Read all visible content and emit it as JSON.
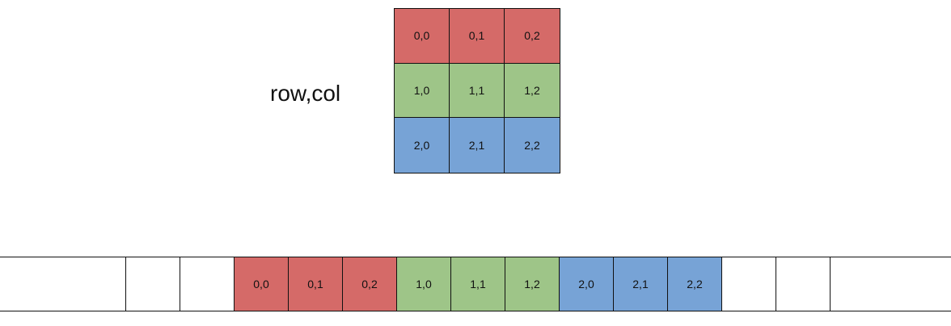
{
  "label": "row,col",
  "colors": {
    "row0": "#d56a68",
    "row1": "#9ec588",
    "row2": "#77a3d6",
    "empty": "#ffffff"
  },
  "matrix": [
    [
      {
        "text": "0,0",
        "row": 0
      },
      {
        "text": "0,1",
        "row": 0
      },
      {
        "text": "0,2",
        "row": 0
      }
    ],
    [
      {
        "text": "1,0",
        "row": 1
      },
      {
        "text": "1,1",
        "row": 1
      },
      {
        "text": "1,2",
        "row": 1
      }
    ],
    [
      {
        "text": "2,0",
        "row": 2
      },
      {
        "text": "2,1",
        "row": 2
      },
      {
        "text": "2,2",
        "row": 2
      }
    ]
  ],
  "strip": [
    {
      "text": "",
      "row": null
    },
    {
      "text": "",
      "row": null
    },
    {
      "text": "0,0",
      "row": 0
    },
    {
      "text": "0,1",
      "row": 0
    },
    {
      "text": "0,2",
      "row": 0
    },
    {
      "text": "1,0",
      "row": 1
    },
    {
      "text": "1,1",
      "row": 1
    },
    {
      "text": "1,2",
      "row": 1
    },
    {
      "text": "2,0",
      "row": 2
    },
    {
      "text": "2,1",
      "row": 2
    },
    {
      "text": "2,2",
      "row": 2
    },
    {
      "text": "",
      "row": null
    },
    {
      "text": "",
      "row": null
    }
  ]
}
